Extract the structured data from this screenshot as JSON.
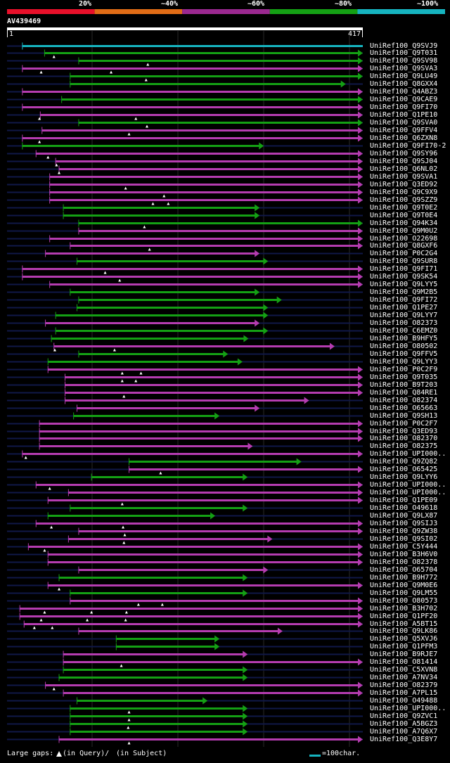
{
  "header": {
    "scale_labels": [
      "20%",
      "~40%",
      "~60%",
      "~80%",
      "~100%"
    ],
    "scale_colors": [
      "#e8102a",
      "#e06c16",
      "#9a2890",
      "#14a014",
      "#16b4c0"
    ],
    "query_id": "AV439469",
    "ruler_start": "1",
    "ruler_end": "417"
  },
  "query_length": 417,
  "colors": {
    "cyan": "#16b4c0",
    "green": "#14a014",
    "magenta": "#b53cb0",
    "faint": "#101848"
  },
  "hits": [
    {
      "label": "UniRef100_Q9SVJ9",
      "color": "cyan",
      "start": 18,
      "end": 417,
      "arrow": false,
      "marks": []
    },
    {
      "label": "UniRef100_Q9T031",
      "color": "green",
      "start": 44,
      "end": 417,
      "arrow": true,
      "marks": [
        55
      ]
    },
    {
      "label": "UniRef100_Q9SV98",
      "color": "green",
      "start": 84,
      "end": 417,
      "arrow": true,
      "marks": [
        165
      ]
    },
    {
      "label": "UniRef100_Q9SVA3",
      "color": "magenta",
      "start": 18,
      "end": 417,
      "arrow": true,
      "marks": [
        40,
        122
      ]
    },
    {
      "label": "UniRef100_Q9LU49",
      "color": "green",
      "start": 74,
      "end": 417,
      "arrow": true,
      "marks": [
        163
      ]
    },
    {
      "label": "UniRef100_Q8GXX4",
      "color": "green",
      "start": 74,
      "end": 397,
      "arrow": true,
      "marks": []
    },
    {
      "label": "UniRef100_Q4ABZ3",
      "color": "magenta",
      "start": 18,
      "end": 417,
      "arrow": true,
      "marks": []
    },
    {
      "label": "UniRef100_Q9CAE9",
      "color": "green",
      "start": 64,
      "end": 417,
      "arrow": true,
      "marks": []
    },
    {
      "label": "UniRef100_Q9FI70",
      "color": "magenta",
      "start": 18,
      "end": 417,
      "arrow": true,
      "marks": []
    },
    {
      "label": "UniRef100_Q1PE10",
      "color": "magenta",
      "start": 39,
      "end": 417,
      "arrow": true,
      "marks": [
        38,
        151
      ]
    },
    {
      "label": "UniRef100_Q9SVA0",
      "color": "green",
      "start": 84,
      "end": 417,
      "arrow": true,
      "marks": [
        164
      ]
    },
    {
      "label": "UniRef100_Q9FFV4",
      "color": "magenta",
      "start": 41,
      "end": 417,
      "arrow": true,
      "marks": [
        143
      ]
    },
    {
      "label": "UniRef100_Q6ZXN8",
      "color": "magenta",
      "start": 18,
      "end": 417,
      "arrow": true,
      "marks": [
        38
      ]
    },
    {
      "label": "UniRef100_Q9FI70-2",
      "color": "green",
      "start": 18,
      "end": 301,
      "arrow": true,
      "marks": []
    },
    {
      "label": "UniRef100_Q9SY96",
      "color": "magenta",
      "start": 34,
      "end": 417,
      "arrow": true,
      "marks": [
        48
      ]
    },
    {
      "label": "UniRef100_Q9SJ04",
      "color": "magenta",
      "start": 57,
      "end": 417,
      "arrow": true,
      "marks": [
        58
      ]
    },
    {
      "label": "UniRef100_Q6NL02",
      "color": "magenta",
      "start": 61,
      "end": 417,
      "arrow": true,
      "marks": [
        61
      ]
    },
    {
      "label": "UniRef100_Q9SVA1",
      "color": "magenta",
      "start": 50,
      "end": 417,
      "arrow": true,
      "marks": []
    },
    {
      "label": "UniRef100_Q3ED92",
      "color": "magenta",
      "start": 50,
      "end": 417,
      "arrow": true,
      "marks": [
        139
      ]
    },
    {
      "label": "UniRef100_Q9C9X9",
      "color": "magenta",
      "start": 50,
      "end": 417,
      "arrow": true,
      "marks": [
        184
      ]
    },
    {
      "label": "UniRef100_Q9SZZ9",
      "color": "magenta",
      "start": 50,
      "end": 417,
      "arrow": true,
      "marks": [
        171,
        189
      ]
    },
    {
      "label": "UniRef100_Q9T0E2",
      "color": "green",
      "start": 66,
      "end": 296,
      "arrow": true,
      "marks": []
    },
    {
      "label": "UniRef100_Q9T0E4",
      "color": "green",
      "start": 66,
      "end": 296,
      "arrow": true,
      "marks": []
    },
    {
      "label": "UniRef100_Q94K34",
      "color": "green",
      "start": 84,
      "end": 417,
      "arrow": true,
      "marks": [
        161
      ]
    },
    {
      "label": "UniRef100_Q9M0U2",
      "color": "magenta",
      "start": 84,
      "end": 417,
      "arrow": true,
      "marks": []
    },
    {
      "label": "UniRef100_O22698",
      "color": "magenta",
      "start": 50,
      "end": 417,
      "arrow": true,
      "marks": []
    },
    {
      "label": "UniRef100_Q8GXF6",
      "color": "magenta",
      "start": 74,
      "end": 417,
      "arrow": true,
      "marks": [
        167
      ]
    },
    {
      "label": "UniRef100_P0C2G4",
      "color": "magenta",
      "start": 45,
      "end": 296,
      "arrow": true,
      "marks": []
    },
    {
      "label": "UniRef100_Q9SUR8",
      "color": "green",
      "start": 82,
      "end": 306,
      "arrow": true,
      "marks": []
    },
    {
      "label": "UniRef100_Q9FI71",
      "color": "magenta",
      "start": 18,
      "end": 417,
      "arrow": true,
      "marks": [
        115
      ]
    },
    {
      "label": "UniRef100_Q9SK54",
      "color": "magenta",
      "start": 18,
      "end": 417,
      "arrow": true,
      "marks": [
        132
      ]
    },
    {
      "label": "UniRef100_Q9LYY5",
      "color": "magenta",
      "start": 50,
      "end": 417,
      "arrow": true,
      "marks": []
    },
    {
      "label": "UniRef100_Q9M2B5",
      "color": "green",
      "start": 74,
      "end": 296,
      "arrow": true,
      "marks": []
    },
    {
      "label": "UniRef100_Q9FI72",
      "color": "green",
      "start": 84,
      "end": 322,
      "arrow": true,
      "marks": []
    },
    {
      "label": "UniRef100_Q1PE27",
      "color": "green",
      "start": 82,
      "end": 306,
      "arrow": true,
      "marks": []
    },
    {
      "label": "UniRef100_Q9LYY7",
      "color": "green",
      "start": 57,
      "end": 306,
      "arrow": true,
      "marks": []
    },
    {
      "label": "UniRef100_O82373",
      "color": "magenta",
      "start": 45,
      "end": 296,
      "arrow": true,
      "marks": []
    },
    {
      "label": "UniRef100_C6EMZ0",
      "color": "green",
      "start": 57,
      "end": 306,
      "arrow": true,
      "marks": []
    },
    {
      "label": "UniRef100_B9HFY5",
      "color": "green",
      "start": 52,
      "end": 283,
      "arrow": true,
      "marks": []
    },
    {
      "label": "UniRef100_O80502",
      "color": "magenta",
      "start": 55,
      "end": 384,
      "arrow": true,
      "marks": [
        56,
        126
      ]
    },
    {
      "label": "UniRef100_Q9FFV5",
      "color": "green",
      "start": 84,
      "end": 259,
      "arrow": true,
      "marks": []
    },
    {
      "label": "UniRef100_Q9LYY3",
      "color": "green",
      "start": 48,
      "end": 276,
      "arrow": true,
      "marks": []
    },
    {
      "label": "UniRef100_P0C2F9",
      "color": "magenta",
      "start": 48,
      "end": 417,
      "arrow": true,
      "marks": [
        135,
        157
      ]
    },
    {
      "label": "UniRef100_Q9T035",
      "color": "magenta",
      "start": 68,
      "end": 417,
      "arrow": true,
      "marks": [
        135,
        151
      ]
    },
    {
      "label": "UniRef100_B9T203",
      "color": "magenta",
      "start": 68,
      "end": 417,
      "arrow": true,
      "marks": []
    },
    {
      "label": "UniRef100_Q84RE1",
      "color": "magenta",
      "start": 68,
      "end": 417,
      "arrow": true,
      "marks": [
        137
      ]
    },
    {
      "label": "UniRef100_O82374",
      "color": "magenta",
      "start": 68,
      "end": 354,
      "arrow": true,
      "marks": []
    },
    {
      "label": "UniRef100_O65663",
      "color": "magenta",
      "start": 82,
      "end": 296,
      "arrow": true,
      "marks": []
    },
    {
      "label": "UniRef100_Q9SH13",
      "color": "green",
      "start": 78,
      "end": 249,
      "arrow": true,
      "marks": []
    },
    {
      "label": "UniRef100_P0C2F7",
      "color": "magenta",
      "start": 38,
      "end": 417,
      "arrow": true,
      "marks": []
    },
    {
      "label": "UniRef100_Q3ED93",
      "color": "magenta",
      "start": 38,
      "end": 417,
      "arrow": true,
      "marks": []
    },
    {
      "label": "UniRef100_O82370",
      "color": "magenta",
      "start": 38,
      "end": 417,
      "arrow": true,
      "marks": []
    },
    {
      "label": "UniRef100_O82375",
      "color": "magenta",
      "start": 38,
      "end": 288,
      "arrow": true,
      "marks": []
    },
    {
      "label": "UniRef100_UPI000..",
      "color": "magenta",
      "start": 18,
      "end": 417,
      "arrow": true,
      "marks": [
        22
      ]
    },
    {
      "label": "UniRef100_Q9ZQ82",
      "color": "green",
      "start": 143,
      "end": 345,
      "arrow": true,
      "marks": []
    },
    {
      "label": "UniRef100_O65425",
      "color": "magenta",
      "start": 143,
      "end": 417,
      "arrow": true,
      "marks": [
        180
      ]
    },
    {
      "label": "UniRef100_Q9LYY6",
      "color": "green",
      "start": 99,
      "end": 282,
      "arrow": true,
      "marks": []
    },
    {
      "label": "UniRef100_UPI000..",
      "color": "magenta",
      "start": 34,
      "end": 417,
      "arrow": true,
      "marks": [
        50
      ]
    },
    {
      "label": "UniRef100_UPI000..",
      "color": "magenta",
      "start": 72,
      "end": 417,
      "arrow": true,
      "marks": []
    },
    {
      "label": "UniRef100_Q1PE09",
      "color": "magenta",
      "start": 48,
      "end": 417,
      "arrow": true,
      "marks": [
        135
      ]
    },
    {
      "label": "UniRef100_O49618",
      "color": "green",
      "start": 74,
      "end": 282,
      "arrow": true,
      "marks": []
    },
    {
      "label": "UniRef100_Q9LX87",
      "color": "green",
      "start": 48,
      "end": 244,
      "arrow": true,
      "marks": []
    },
    {
      "label": "UniRef100_Q9SIJ3",
      "color": "magenta",
      "start": 34,
      "end": 417,
      "arrow": true,
      "marks": [
        52,
        136
      ]
    },
    {
      "label": "UniRef100_Q9ZW38",
      "color": "magenta",
      "start": 84,
      "end": 417,
      "arrow": true,
      "marks": [
        138
      ]
    },
    {
      "label": "UniRef100_Q9SI02",
      "color": "magenta",
      "start": 72,
      "end": 311,
      "arrow": true,
      "marks": [
        137
      ]
    },
    {
      "label": "UniRef100_C5Y444",
      "color": "magenta",
      "start": 25,
      "end": 417,
      "arrow": true,
      "marks": [
        44
      ]
    },
    {
      "label": "UniRef100_B3H6V0",
      "color": "magenta",
      "start": 48,
      "end": 417,
      "arrow": true,
      "marks": []
    },
    {
      "label": "UniRef100_O82378",
      "color": "magenta",
      "start": 48,
      "end": 417,
      "arrow": true,
      "marks": []
    },
    {
      "label": "UniRef100_O65704",
      "color": "magenta",
      "start": 84,
      "end": 306,
      "arrow": true,
      "marks": []
    },
    {
      "label": "UniRef100_B9H772",
      "color": "green",
      "start": 61,
      "end": 282,
      "arrow": true,
      "marks": []
    },
    {
      "label": "UniRef100_Q9M0E6",
      "color": "magenta",
      "start": 48,
      "end": 417,
      "arrow": true,
      "marks": [
        61
      ]
    },
    {
      "label": "UniRef100_Q9LM55",
      "color": "green",
      "start": 74,
      "end": 282,
      "arrow": true,
      "marks": []
    },
    {
      "label": "UniRef100_O80573",
      "color": "magenta",
      "start": 74,
      "end": 417,
      "arrow": true,
      "marks": [
        154,
        182
      ]
    },
    {
      "label": "UniRef100_B3H702",
      "color": "magenta",
      "start": 15,
      "end": 417,
      "arrow": true,
      "marks": [
        44,
        99,
        140
      ]
    },
    {
      "label": "UniRef100_Q1PF20",
      "color": "magenta",
      "start": 15,
      "end": 417,
      "arrow": true,
      "marks": [
        40,
        94,
        139
      ]
    },
    {
      "label": "UniRef100_A5BT15",
      "color": "magenta",
      "start": 20,
      "end": 417,
      "arrow": true,
      "marks": [
        32,
        53
      ]
    },
    {
      "label": "UniRef100_Q9LK86",
      "color": "magenta",
      "start": 84,
      "end": 323,
      "arrow": true,
      "marks": []
    },
    {
      "label": "UniRef100_Q5XVJ6",
      "color": "green",
      "start": 128,
      "end": 249,
      "arrow": true,
      "marks": []
    },
    {
      "label": "UniRef100_Q1PFM3",
      "color": "green",
      "start": 128,
      "end": 249,
      "arrow": true,
      "marks": []
    },
    {
      "label": "UniRef100_B9RJE7",
      "color": "magenta",
      "start": 66,
      "end": 282,
      "arrow": true,
      "marks": []
    },
    {
      "label": "UniRef100_O81414",
      "color": "magenta",
      "start": 66,
      "end": 417,
      "arrow": true,
      "marks": [
        134
      ]
    },
    {
      "label": "UniRef100_C5XVN8",
      "color": "green",
      "start": 66,
      "end": 282,
      "arrow": true,
      "marks": []
    },
    {
      "label": "UniRef100_A7NV34",
      "color": "green",
      "start": 61,
      "end": 282,
      "arrow": true,
      "marks": []
    },
    {
      "label": "UniRef100_O82379",
      "color": "magenta",
      "start": 45,
      "end": 417,
      "arrow": true,
      "marks": [
        55
      ]
    },
    {
      "label": "UniRef100_A7PL15",
      "color": "magenta",
      "start": 66,
      "end": 417,
      "arrow": true,
      "marks": []
    },
    {
      "label": "UniRef100_O49488",
      "color": "green",
      "start": 82,
      "end": 235,
      "arrow": true,
      "marks": []
    },
    {
      "label": "UniRef100_UPI000..",
      "color": "green",
      "start": 74,
      "end": 282,
      "arrow": true,
      "marks": [
        143
      ]
    },
    {
      "label": "UniRef100_Q9ZVC1",
      "color": "green",
      "start": 74,
      "end": 282,
      "arrow": true,
      "marks": [
        143
      ]
    },
    {
      "label": "UniRef100_A5BGZ3",
      "color": "green",
      "start": 74,
      "end": 282,
      "arrow": true,
      "marks": [
        142
      ]
    },
    {
      "label": "UniRef100_A7Q6X7",
      "color": "green",
      "start": 74,
      "end": 282,
      "arrow": true,
      "marks": []
    },
    {
      "label": "UniRef100_Q3E8Y7",
      "color": "magenta",
      "start": 61,
      "end": 417,
      "arrow": true,
      "marks": [
        143
      ]
    }
  ],
  "footer": {
    "gaps_text": "Large gaps:",
    "query_gap": "(in Query)/",
    "subject_gap": "(in Subject)",
    "legend_text": "=100char."
  }
}
